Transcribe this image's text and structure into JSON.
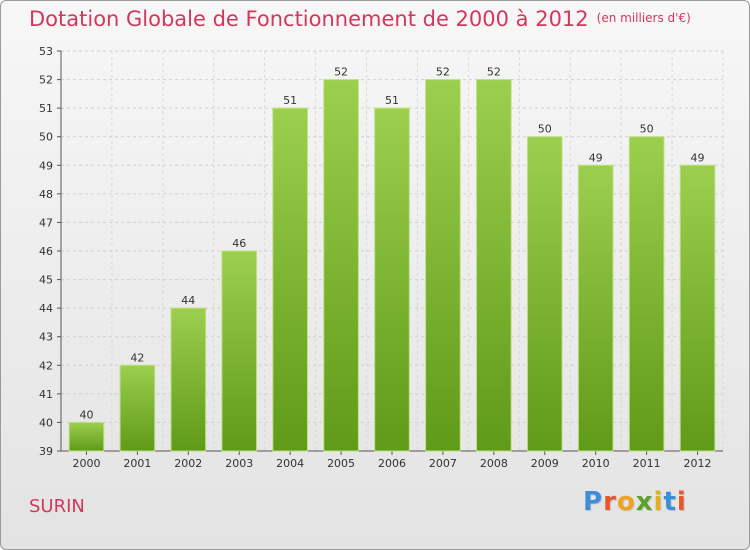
{
  "title": "Dotation Globale de Fonctionnement de 2000 à 2012",
  "unit": "(en milliers d'€)",
  "commune": "SURIN",
  "logo": {
    "letters": [
      {
        "ch": "P",
        "color": "#3b8ed8"
      },
      {
        "ch": "r",
        "color": "#e8562a"
      },
      {
        "ch": "o",
        "color": "#f0a321"
      },
      {
        "ch": "x",
        "color": "#5aa22d"
      },
      {
        "ch": "i",
        "color": "#e0b020"
      },
      {
        "ch": "t",
        "color": "#3b8ed8"
      },
      {
        "ch": "i",
        "color": "#e8562a"
      }
    ]
  },
  "chart_data": {
    "type": "bar",
    "title": "Dotation Globale de Fonctionnement de 2000 à 2012",
    "subtitle": "(en milliers d'€)",
    "categories": [
      "2000",
      "2001",
      "2002",
      "2003",
      "2004",
      "2005",
      "2006",
      "2007",
      "2008",
      "2009",
      "2010",
      "2011",
      "2012"
    ],
    "values": [
      40,
      42,
      44,
      46,
      51,
      52,
      51,
      52,
      52,
      50,
      49,
      50,
      49
    ],
    "ylim": [
      39,
      53
    ],
    "yticks": [
      39,
      40,
      41,
      42,
      43,
      44,
      45,
      46,
      47,
      48,
      49,
      50,
      51,
      52,
      53
    ],
    "grid": true,
    "bar_color_top": "#9ccf4e",
    "bar_color_bottom": "#5f9a18"
  }
}
